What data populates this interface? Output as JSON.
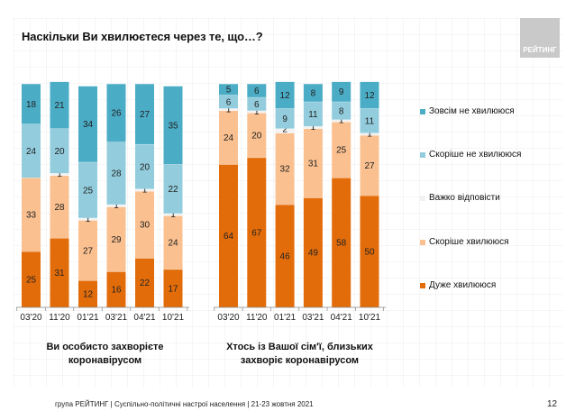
{
  "header": {
    "title": "Наскільки Ви хвилюєтеся через те, що…?",
    "logo_text": "РЕЙТИНГ"
  },
  "footer": {
    "source": "група РЕЙТИНГ | Суспільно-політичні настрої населення  | 21-23 жовтня 2021",
    "page_number": "12"
  },
  "colors": {
    "very_worried": "#E36C0A",
    "rather_worried": "#FAC090",
    "hard_to_say": "#F2F2F2",
    "rather_not_worried": "#93CDDD",
    "not_worried_at_all": "#4BACC6"
  },
  "chart_data": [
    {
      "type": "bar",
      "stacked": true,
      "title": "Ви особисто захворієте коронавірусом",
      "categories": [
        "03'20",
        "11'20",
        "01'21",
        "03'21",
        "04'21",
        "10'21"
      ],
      "ylim": [
        0,
        100
      ],
      "unit": "%",
      "series": [
        {
          "name": "Дуже хвилююся",
          "color_key": "very_worried",
          "values": [
            25,
            31,
            12,
            16,
            22,
            17
          ]
        },
        {
          "name": "Скоріше хвилююся",
          "color_key": "rather_worried",
          "values": [
            33,
            28,
            27,
            29,
            30,
            24
          ]
        },
        {
          "name": "Важко відповісти",
          "color_key": "hard_to_say",
          "values": [
            0,
            1,
            1,
            1,
            1,
            1
          ]
        },
        {
          "name": "Скоріше не хвилююся",
          "color_key": "rather_not_worried",
          "values": [
            24,
            20,
            25,
            28,
            20,
            22
          ]
        },
        {
          "name": "Зовсім не хвилююся",
          "color_key": "not_worried_at_all",
          "values": [
            18,
            21,
            34,
            26,
            27,
            35
          ]
        }
      ]
    },
    {
      "type": "bar",
      "stacked": true,
      "title": "Хтось із Вашої сім'ї, близьких захворіє коронавірусом",
      "categories": [
        "03'20",
        "11'20",
        "01'21",
        "03'21",
        "04'21",
        "10'21"
      ],
      "ylim": [
        0,
        100
      ],
      "unit": "%",
      "series": [
        {
          "name": "Дуже хвилююся",
          "color_key": "very_worried",
          "values": [
            64,
            67,
            46,
            49,
            58,
            50
          ]
        },
        {
          "name": "Скоріше хвилююся",
          "color_key": "rather_worried",
          "values": [
            24,
            20,
            32,
            31,
            25,
            27
          ]
        },
        {
          "name": "Важко відповісти",
          "color_key": "hard_to_say",
          "values": [
            1,
            1,
            2,
            1,
            1,
            1
          ]
        },
        {
          "name": "Скоріше не хвилююся",
          "color_key": "rather_not_worried",
          "values": [
            6,
            6,
            9,
            11,
            8,
            11
          ]
        },
        {
          "name": "Зовсім не хвилююся",
          "color_key": "not_worried_at_all",
          "values": [
            5,
            6,
            12,
            8,
            9,
            12
          ]
        }
      ]
    }
  ],
  "groups": {
    "left_label_line1": "Ви особисто захворієте",
    "left_label_line2": "коронавірусом",
    "right_label_line1": "Хтось із Вашої сім'ї, близьких",
    "right_label_line2": "захворіє коронавірусом"
  },
  "legend": {
    "items": [
      {
        "label": "Зовсім не хвилююся",
        "color_key": "not_worried_at_all"
      },
      {
        "label": "Скоріше не хвилююся",
        "color_key": "rather_not_worried"
      },
      {
        "label": "Важко відповісти",
        "color_key": "hard_to_say"
      },
      {
        "label": "Скоріше хвилююся",
        "color_key": "rather_worried"
      },
      {
        "label": "Дуже хвилююся",
        "color_key": "very_worried"
      }
    ]
  }
}
